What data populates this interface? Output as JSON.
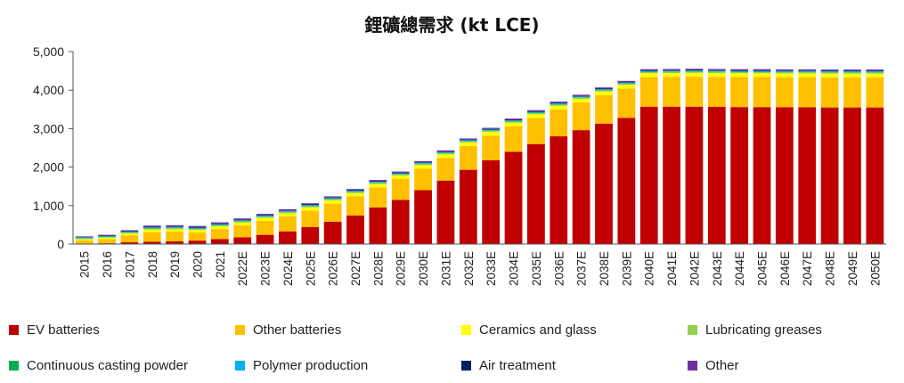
{
  "chart_data": {
    "type": "bar",
    "stacked": true,
    "title": "鋰礦總需求 (kt LCE)",
    "xlabel": "",
    "ylabel": "",
    "ylim": [
      0,
      5000
    ],
    "yticks": [
      "0",
      "1,000",
      "2,000",
      "3,000",
      "4,000",
      "5,000"
    ],
    "grid": false,
    "legend_position": "bottom",
    "categories": [
      "2015",
      "2016",
      "2017",
      "2018",
      "2019",
      "2020",
      "2021",
      "2022E",
      "2023E",
      "2024E",
      "2025E",
      "2026E",
      "2027E",
      "2028E",
      "2029E",
      "2030E",
      "2031E",
      "2032E",
      "2033E",
      "2034E",
      "2035E",
      "2036E",
      "2037E",
      "2038E",
      "2039E",
      "2040E",
      "2041E",
      "2042E",
      "2043E",
      "2044E",
      "2045E",
      "2046E",
      "2047E",
      "2048E",
      "2049E",
      "2050E"
    ],
    "series": [
      {
        "name": "EV batteries",
        "color": "#C00000",
        "values": [
          10,
          20,
          45,
          60,
          70,
          90,
          130,
          175,
          240,
          330,
          440,
          580,
          740,
          950,
          1150,
          1400,
          1650,
          1930,
          2180,
          2400,
          2600,
          2800,
          2960,
          3130,
          3280,
          3570,
          3570,
          3570,
          3565,
          3560,
          3560,
          3555,
          3555,
          3550,
          3550,
          3550
        ]
      },
      {
        "name": "Other batteries",
        "color": "#FFC000",
        "values": [
          85,
          110,
          180,
          250,
          250,
          210,
          260,
          310,
          360,
          390,
          430,
          470,
          500,
          520,
          540,
          560,
          590,
          620,
          640,
          660,
          680,
          700,
          720,
          740,
          760,
          770,
          775,
          780,
          780,
          780,
          780,
          780,
          780,
          780,
          780,
          780
        ]
      },
      {
        "name": "Ceramics and glass",
        "color": "#FFFF00",
        "values": [
          30,
          35,
          50,
          65,
          65,
          65,
          70,
          75,
          80,
          80,
          85,
          85,
          85,
          90,
          90,
          90,
          90,
          90,
          95,
          95,
          95,
          95,
          95,
          95,
          95,
          100,
          100,
          100,
          100,
          100,
          100,
          100,
          100,
          100,
          100,
          100
        ]
      },
      {
        "name": "Lubricating greases",
        "color": "#92D050",
        "values": [
          20,
          20,
          25,
          30,
          30,
          30,
          30,
          30,
          30,
          30,
          30,
          30,
          30,
          30,
          30,
          30,
          30,
          30,
          30,
          30,
          30,
          30,
          30,
          30,
          30,
          30,
          30,
          30,
          30,
          30,
          30,
          30,
          30,
          30,
          30,
          30
        ]
      },
      {
        "name": "Continuous casting powder",
        "color": "#00B050",
        "values": [
          10,
          10,
          10,
          10,
          10,
          10,
          10,
          10,
          10,
          10,
          10,
          10,
          10,
          10,
          10,
          10,
          10,
          10,
          10,
          10,
          10,
          10,
          10,
          10,
          10,
          10,
          10,
          10,
          10,
          10,
          10,
          10,
          10,
          10,
          10,
          10
        ]
      },
      {
        "name": "Polymer production",
        "color": "#00B0F0",
        "values": [
          15,
          15,
          15,
          20,
          20,
          20,
          20,
          20,
          20,
          20,
          20,
          20,
          20,
          20,
          20,
          20,
          20,
          20,
          20,
          20,
          20,
          20,
          20,
          20,
          20,
          20,
          20,
          20,
          20,
          20,
          20,
          20,
          20,
          20,
          20,
          20
        ]
      },
      {
        "name": "Air treatment",
        "color": "#002060",
        "values": [
          10,
          10,
          10,
          15,
          15,
          15,
          15,
          15,
          15,
          15,
          15,
          15,
          15,
          15,
          15,
          15,
          15,
          15,
          15,
          15,
          15,
          15,
          15,
          15,
          15,
          15,
          15,
          15,
          15,
          15,
          15,
          15,
          15,
          15,
          15,
          15
        ]
      },
      {
        "name": "Other",
        "color": "#7030A0",
        "values": [
          20,
          20,
          25,
          30,
          30,
          30,
          30,
          30,
          30,
          30,
          30,
          30,
          30,
          30,
          30,
          30,
          30,
          30,
          30,
          30,
          30,
          30,
          30,
          30,
          30,
          30,
          30,
          30,
          30,
          30,
          30,
          30,
          30,
          30,
          30,
          30
        ]
      }
    ]
  }
}
